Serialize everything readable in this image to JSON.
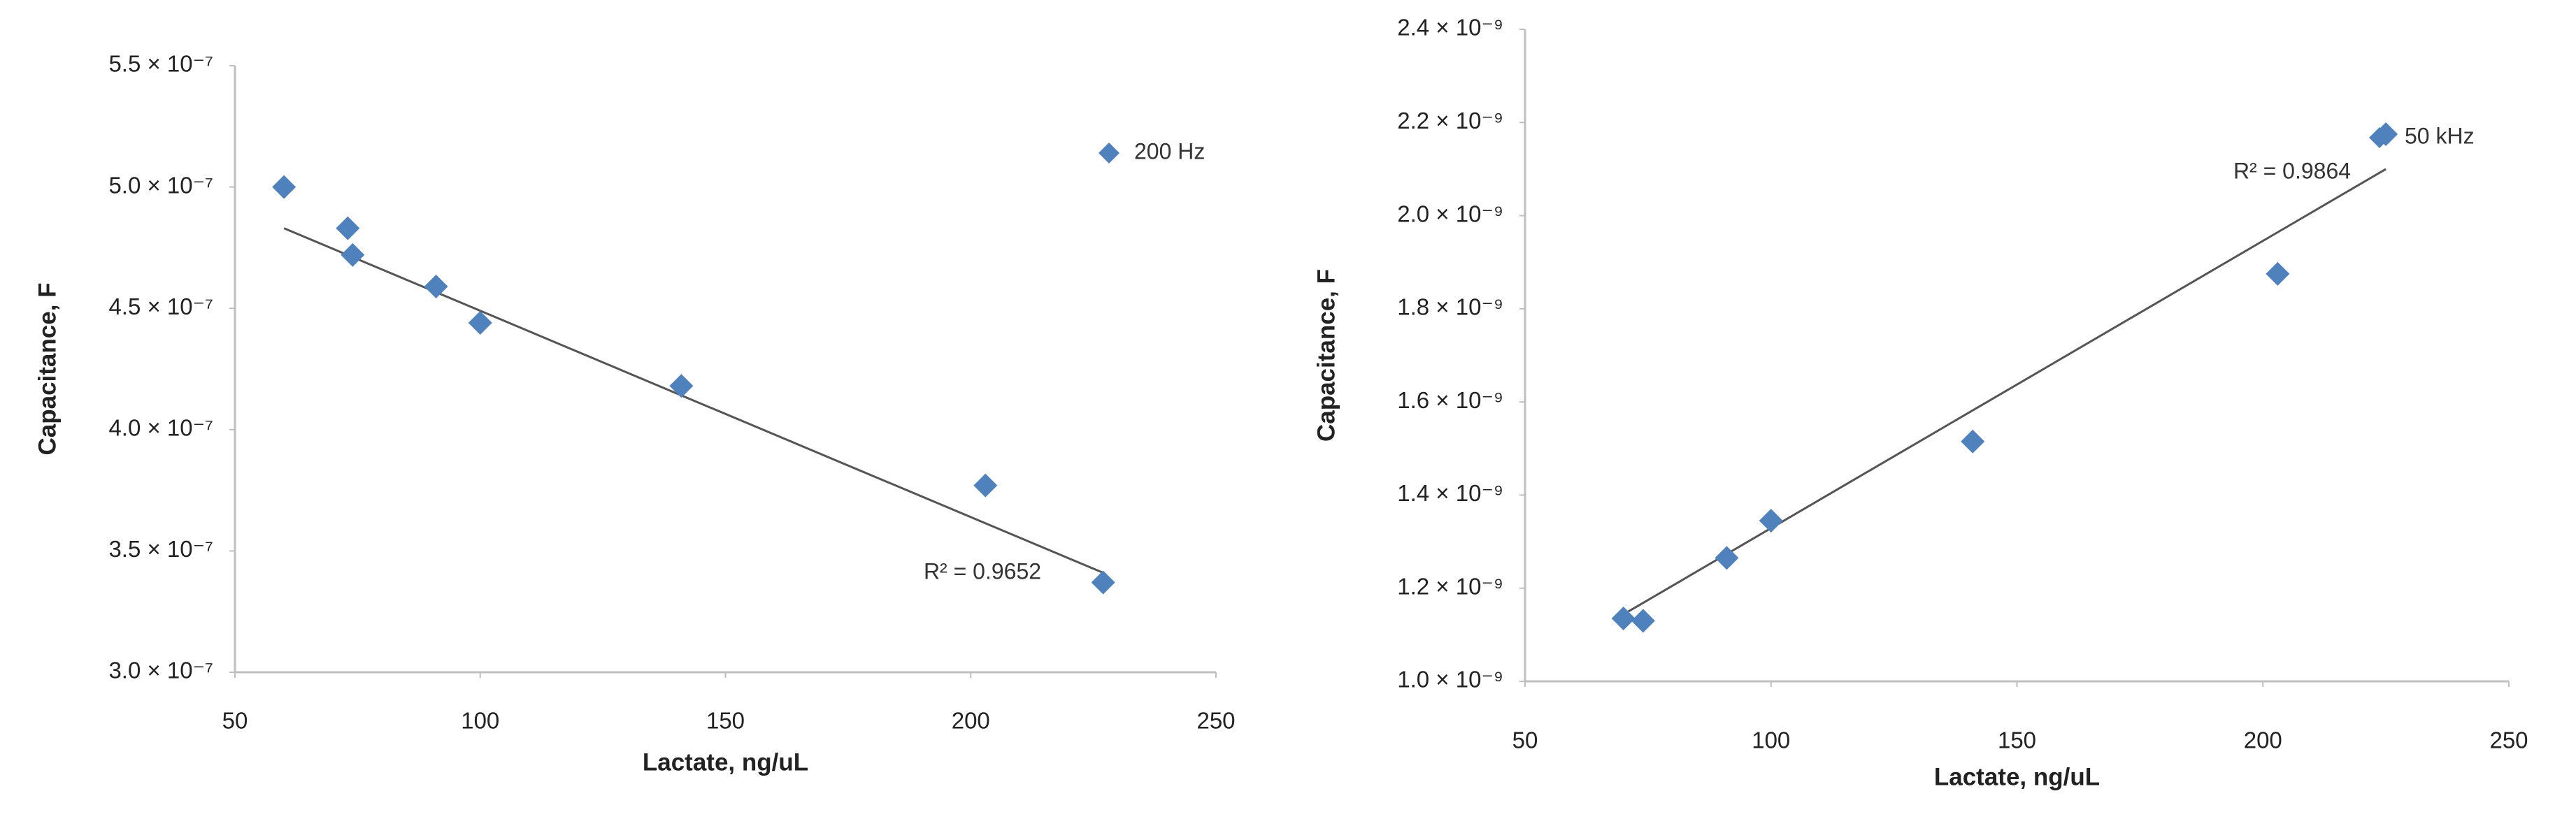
{
  "chart_data": [
    {
      "type": "scatter",
      "xlabel": "Lactate, ng/uL",
      "ylabel": "Capacitance, F",
      "xlim": [
        50,
        250
      ],
      "xticks": [
        50,
        100,
        150,
        200,
        250
      ],
      "ylim": [
        3e-07,
        5.5e-07
      ],
      "yticks": [
        {
          "value": 3e-07,
          "label": "3.0 × 10⁻⁷"
        },
        {
          "value": 3.5e-07,
          "label": "3.5 × 10⁻⁷"
        },
        {
          "value": 4e-07,
          "label": "4.0 × 10⁻⁷"
        },
        {
          "value": 4.5e-07,
          "label": "4.5 × 10⁻⁷"
        },
        {
          "value": 5e-07,
          "label": "5.0 × 10⁻⁷"
        },
        {
          "value": 5.5e-07,
          "label": "5.5 × 10⁻⁷"
        }
      ],
      "series": [
        {
          "name": "200 Hz",
          "color": "#4f81bd",
          "x": [
            60,
            73,
            74,
            91,
            100,
            141,
            203,
            227
          ],
          "values": [
            5e-07,
            4.83e-07,
            4.72e-07,
            4.59e-07,
            4.44e-07,
            4.18e-07,
            3.77e-07,
            3.37e-07
          ]
        }
      ],
      "trendline": {
        "color": "#555555",
        "x": [
          60,
          227
        ],
        "values": [
          4.83e-07,
          3.41e-07
        ]
      },
      "annotation": "R² = 0.9652",
      "legend": "upper right"
    },
    {
      "type": "scatter",
      "xlabel": "Lactate, ng/uL",
      "ylabel": "Capacitance, F",
      "xlim": [
        50,
        250
      ],
      "xticks": [
        50,
        100,
        150,
        200,
        250
      ],
      "ylim": [
        1e-09,
        2.4e-09
      ],
      "yticks": [
        {
          "value": 1e-09,
          "label": "1.0 × 10⁻⁹"
        },
        {
          "value": 1.2e-09,
          "label": "1.2 × 10⁻⁹"
        },
        {
          "value": 1.4e-09,
          "label": "1.4 × 10⁻⁹"
        },
        {
          "value": 1.6e-09,
          "label": "1.6 × 10⁻⁹"
        },
        {
          "value": 1.8e-09,
          "label": "1.8 × 10⁻⁹"
        },
        {
          "value": 2e-09,
          "label": "2.0 × 10⁻⁹"
        },
        {
          "value": 2.2e-09,
          "label": "2.2 × 10⁻⁹"
        },
        {
          "value": 2.4e-09,
          "label": "2.4 × 10⁻⁹"
        }
      ],
      "series": [
        {
          "name": "50 kHz",
          "color": "#4f81bd",
          "x": [
            70,
            74,
            91,
            100,
            141,
            203,
            225
          ],
          "values": [
            1.135e-09,
            1.13e-09,
            1.265e-09,
            1.345e-09,
            1.515e-09,
            1.875e-09,
            2.175e-09
          ]
        }
      ],
      "trendline": {
        "color": "#555555",
        "x": [
          71,
          225
        ],
        "values": [
          1.15e-09,
          2.1e-09
        ]
      },
      "annotation": "R² = 0.9864",
      "legend": "upper right"
    }
  ]
}
